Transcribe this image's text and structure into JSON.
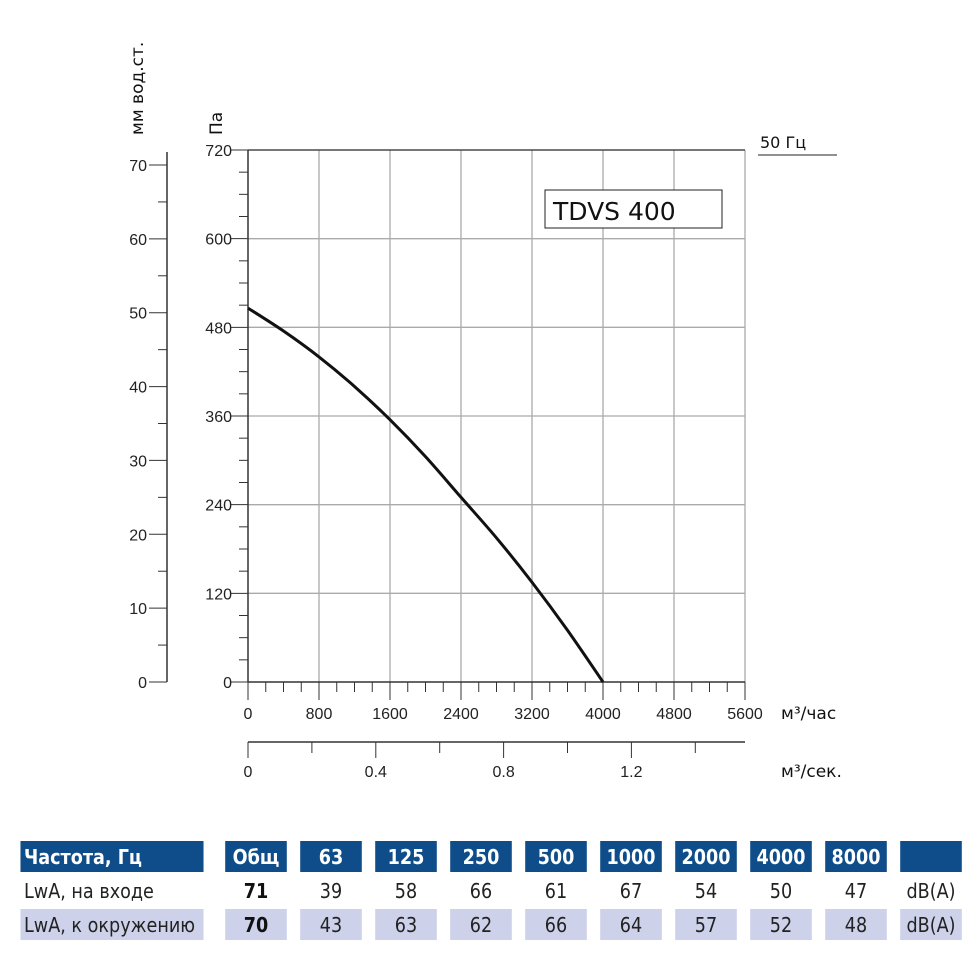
{
  "chart_data": {
    "type": "line",
    "title": "",
    "model_label": "TDVS 400",
    "frequency_label": "50 Гц",
    "x": [
      0,
      400,
      800,
      1200,
      1600,
      2000,
      2400,
      2800,
      3200,
      3600,
      4000
    ],
    "series": [
      {
        "values": [
          506,
          475,
          440,
          400,
          355,
          305,
          250,
          195,
          135,
          70,
          0
        ]
      }
    ],
    "xlabel": "м³/час",
    "xlim": [
      0,
      5600
    ],
    "xticks": [
      "0",
      "800",
      "1600",
      "2400",
      "3200",
      "4000",
      "4800",
      "5600"
    ],
    "ylabel": "Па",
    "ylim": [
      0,
      720
    ],
    "yticks": [
      "0",
      "120",
      "240",
      "360",
      "480",
      "600",
      "720"
    ],
    "secondary_y": {
      "label": "мм вод.ст.",
      "lim": [
        0,
        70
      ],
      "ticks": [
        "0",
        "10",
        "20",
        "30",
        "40",
        "50",
        "60",
        "70"
      ]
    },
    "secondary_x": {
      "label": "м³/сек.",
      "lim": [
        0,
        1.2
      ],
      "ticks": [
        "0",
        "0.4",
        "0.8",
        "1.2"
      ]
    },
    "grid": true
  },
  "table": {
    "header": [
      "Частота, Гц",
      "Общ",
      "63",
      "125",
      "250",
      "500",
      "1000",
      "2000",
      "4000",
      "8000",
      ""
    ],
    "rows": [
      [
        "LwA, на входе",
        "71",
        "39",
        "58",
        "66",
        "61",
        "67",
        "54",
        "50",
        "47",
        "dB(A)"
      ],
      [
        "LwA, к окружению",
        "70",
        "43",
        "63",
        "62",
        "66",
        "64",
        "57",
        "52",
        "48",
        "dB(A)"
      ]
    ]
  },
  "colors": {
    "header_bg": "#0e4d8a",
    "row_alt_bg": "#cdd1ea",
    "curve": "#111111"
  }
}
